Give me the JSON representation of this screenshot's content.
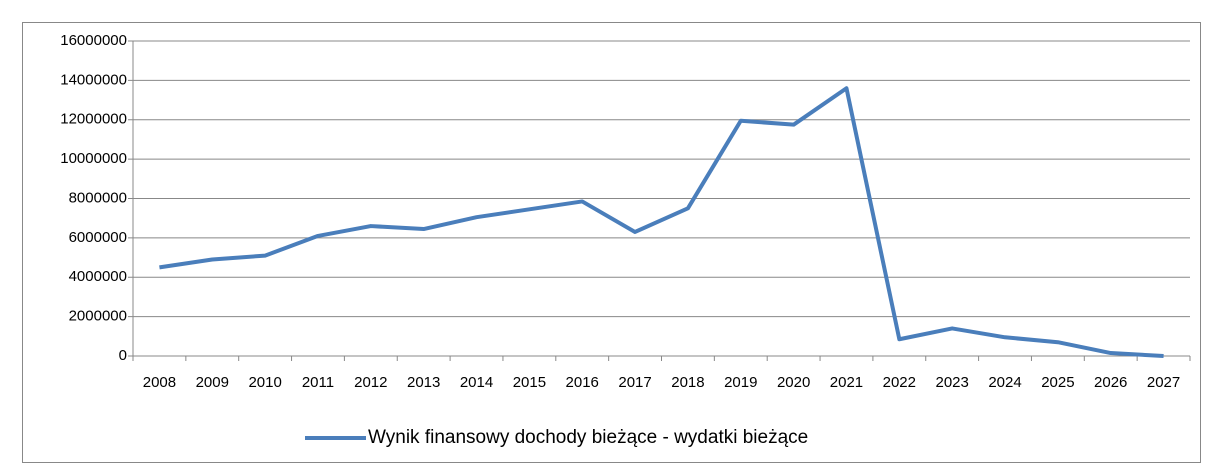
{
  "chart_data": {
    "type": "line",
    "categories": [
      "2008",
      "2009",
      "2010",
      "2011",
      "2012",
      "2013",
      "2014",
      "2015",
      "2016",
      "2017",
      "2018",
      "2019",
      "2020",
      "2021",
      "2022",
      "2023",
      "2024",
      "2025",
      "2026",
      "2027"
    ],
    "series": [
      {
        "name": "Wynik finansowy dochody bieżące - wydatki bieżące",
        "color": "#4a7ebb",
        "values": [
          4500000,
          4900000,
          5100000,
          6100000,
          6600000,
          6450000,
          7050000,
          7450000,
          7850000,
          6300000,
          7500000,
          11950000,
          11750000,
          13600000,
          850000,
          1400000,
          950000,
          700000,
          150000,
          0
        ]
      }
    ],
    "ylim": [
      0,
      16000000
    ],
    "yticks": [
      0,
      2000000,
      4000000,
      6000000,
      8000000,
      10000000,
      12000000,
      14000000,
      16000000
    ],
    "grid": true,
    "legend": "bottom"
  }
}
